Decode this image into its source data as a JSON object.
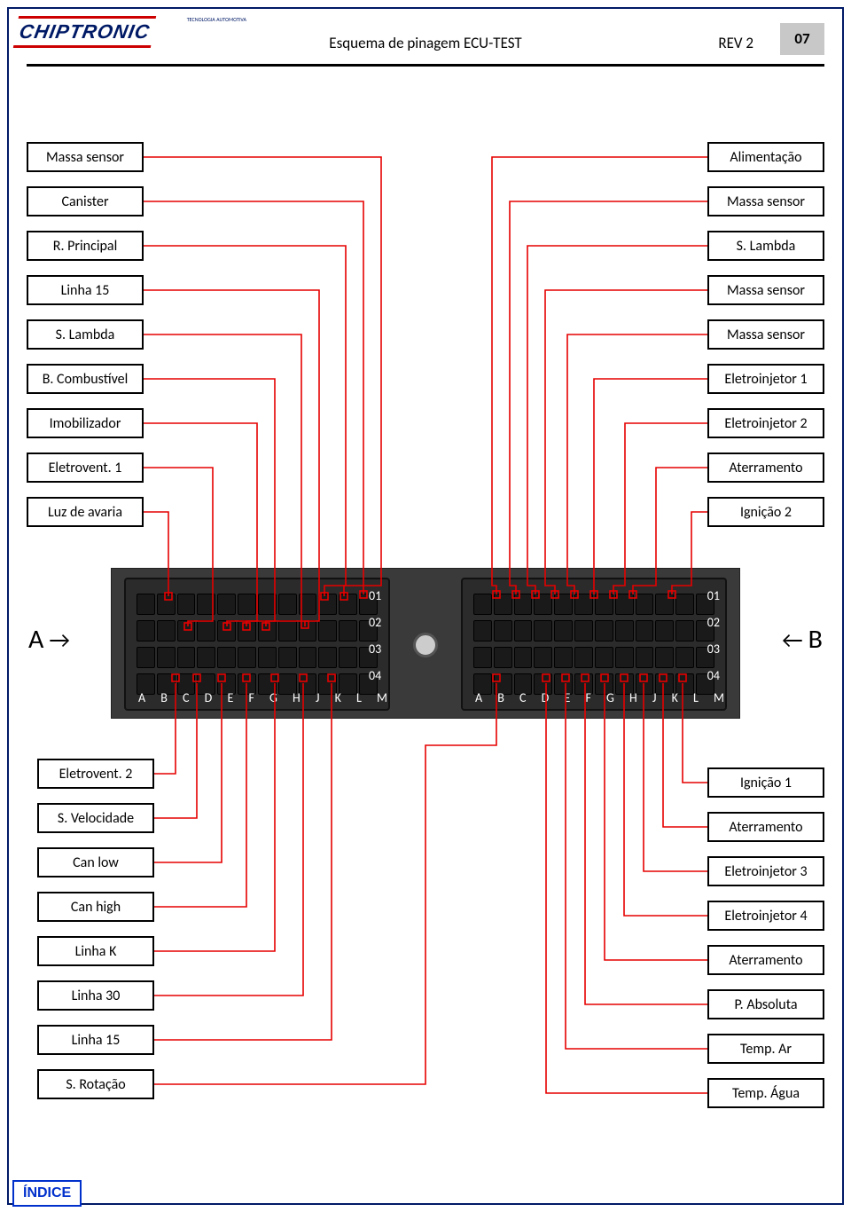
{
  "header": {
    "logo_text": "CHIPTRONIC",
    "logo_tagline": "TECNOLOGIA AUTOMOTIVA",
    "title": "Esquema de pinagem ECU-TEST",
    "rev": "REV 2",
    "page_number": "07"
  },
  "connector_letters": "A B C D E F G H J K L M",
  "row_labels": [
    "01",
    "02",
    "03",
    "04"
  ],
  "side_labels": {
    "left": "A",
    "right": "B"
  },
  "colors": {
    "wire": "#e60000",
    "frame": "#001a66",
    "box_border": "#000000",
    "pagenum_bg": "#c8c8c8",
    "connector_bg": "#3a3a3a",
    "connector_block": "#2b2b2b"
  },
  "left_top": [
    "Massa sensor",
    "Canister",
    "R. Principal",
    "Linha 15",
    "S. Lambda",
    "B. Combustível",
    "Imobilizador",
    "Eletrovent. 1",
    "Luz de avaria"
  ],
  "right_top": [
    "Alimentação",
    "Massa sensor",
    "S. Lambda",
    "Massa sensor",
    "Massa sensor",
    "Eletroinjetor 1",
    "Eletroinjetor 2",
    "Aterramento",
    "Ignição 2"
  ],
  "left_bottom": [
    "Eletrovent. 2",
    "S. Velocidade",
    "Can low",
    "Can high",
    "Linha K",
    "Linha 30",
    "Linha 15",
    "S. Rotação"
  ],
  "right_bottom": [
    "Ignição 1",
    "Aterramento",
    "Eletroinjetor 3",
    "Eletroinjetor 4",
    "Aterramento",
    "P. Absoluta",
    "Temp. Ar",
    "Temp. Água"
  ],
  "index_button": "ÍNDICE"
}
